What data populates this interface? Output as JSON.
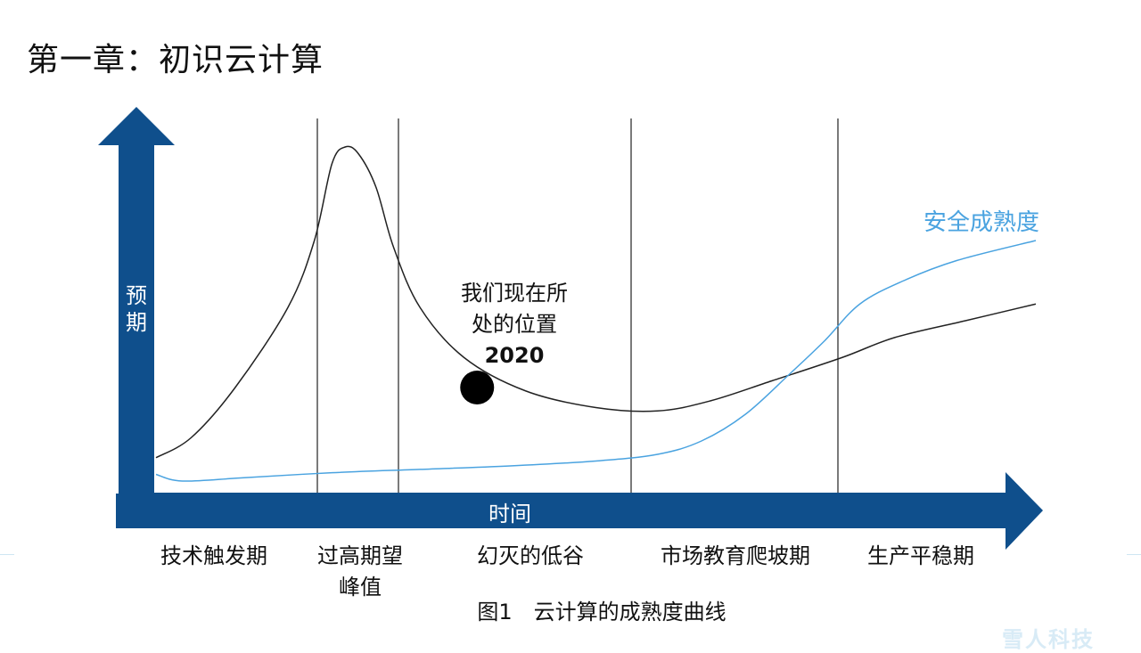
{
  "title": "第一章：初识云计算",
  "chart_data": {
    "type": "line",
    "y_axis_label": "预期",
    "x_axis_label": "时间",
    "phases": [
      {
        "label_lines": [
          "技术触发期"
        ]
      },
      {
        "label_lines": [
          "过高期望",
          "峰值"
        ]
      },
      {
        "label_lines": [
          "幻灭的低谷"
        ]
      },
      {
        "label_lines": [
          "市场教育爬坡期"
        ]
      },
      {
        "label_lines": [
          "生产平稳期"
        ]
      }
    ],
    "series": [
      {
        "name": "",
        "color": "#222222",
        "points": [
          [
            0,
            0.07
          ],
          [
            0.04,
            0.13
          ],
          [
            0.09,
            0.28
          ],
          [
            0.15,
            0.52
          ],
          [
            0.18,
            0.72
          ],
          [
            0.2,
            0.95
          ],
          [
            0.215,
            1.0
          ],
          [
            0.23,
            0.98
          ],
          [
            0.25,
            0.88
          ],
          [
            0.27,
            0.7
          ],
          [
            0.3,
            0.52
          ],
          [
            0.35,
            0.37
          ],
          [
            0.42,
            0.27
          ],
          [
            0.5,
            0.22
          ],
          [
            0.57,
            0.21
          ],
          [
            0.63,
            0.24
          ],
          [
            0.7,
            0.3
          ],
          [
            0.78,
            0.37
          ],
          [
            0.84,
            0.43
          ],
          [
            0.92,
            0.48
          ],
          [
            1.0,
            0.53
          ]
        ]
      },
      {
        "name": "安全成熟度",
        "color": "#4aa3e0",
        "points": [
          [
            0,
            0.02
          ],
          [
            0.03,
            0.0
          ],
          [
            0.1,
            0.01
          ],
          [
            0.2,
            0.025
          ],
          [
            0.3,
            0.035
          ],
          [
            0.4,
            0.045
          ],
          [
            0.5,
            0.06
          ],
          [
            0.57,
            0.08
          ],
          [
            0.62,
            0.12
          ],
          [
            0.67,
            0.2
          ],
          [
            0.72,
            0.32
          ],
          [
            0.76,
            0.42
          ],
          [
            0.8,
            0.53
          ],
          [
            0.85,
            0.6
          ],
          [
            0.91,
            0.66
          ],
          [
            1.0,
            0.72
          ]
        ]
      }
    ],
    "marker": {
      "x": 0.365,
      "y": 0.28,
      "label_lines": [
        "我们现在所",
        "处的位置",
        "2020"
      ]
    },
    "caption": "图1　云计算的成熟度曲线"
  },
  "watermark": "雪人科技"
}
